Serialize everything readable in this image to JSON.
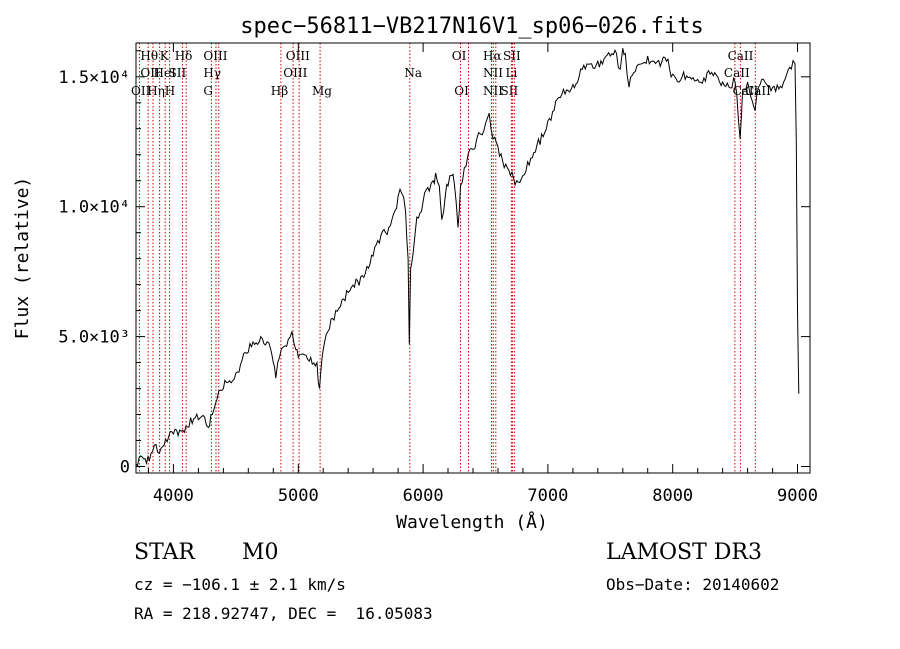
{
  "chart_data": {
    "type": "line",
    "title": "spec−56811−VB217N16V1_sp06−026.fits",
    "xlabel": "Wavelength (Å)",
    "ylabel": "Flux (relative)",
    "xlim": [
      3700,
      9100
    ],
    "ylim": [
      -250,
      16300
    ],
    "xticks": [
      {
        "value": 4000,
        "label": "4000"
      },
      {
        "value": 5000,
        "label": "5000"
      },
      {
        "value": 6000,
        "label": "6000"
      },
      {
        "value": 7000,
        "label": "7000"
      },
      {
        "value": 8000,
        "label": "8000"
      },
      {
        "value": 9000,
        "label": "9000"
      }
    ],
    "yticks": [
      {
        "value": 0,
        "label": "0"
      },
      {
        "value": 5000,
        "label": "5.0×10³"
      },
      {
        "value": 10000,
        "label": "1.0×10⁴"
      },
      {
        "value": 15000,
        "label": "1.5×10⁴"
      }
    ],
    "series": [
      {
        "name": "flux",
        "points": [
          [
            3700,
            100
          ],
          [
            3760,
            300
          ],
          [
            3820,
            500
          ],
          [
            3900,
            700
          ],
          [
            3950,
            950
          ],
          [
            4000,
            1250
          ],
          [
            4050,
            1400
          ],
          [
            4100,
            1550
          ],
          [
            4150,
            1650
          ],
          [
            4200,
            1800
          ],
          [
            4250,
            1900
          ],
          [
            4280,
            1500
          ],
          [
            4300,
            2000
          ],
          [
            4350,
            2600
          ],
          [
            4400,
            3000
          ],
          [
            4450,
            3300
          ],
          [
            4500,
            3600
          ],
          [
            4550,
            4100
          ],
          [
            4600,
            4400
          ],
          [
            4650,
            4700
          ],
          [
            4700,
            5000
          ],
          [
            4750,
            4800
          ],
          [
            4780,
            4500
          ],
          [
            4800,
            4000
          ],
          [
            4820,
            3400
          ],
          [
            4850,
            4200
          ],
          [
            4880,
            4600
          ],
          [
            4920,
            4900
          ],
          [
            4950,
            5200
          ],
          [
            4980,
            4500
          ],
          [
            5000,
            4200
          ],
          [
            5050,
            4300
          ],
          [
            5100,
            4200
          ],
          [
            5150,
            4000
          ],
          [
            5170,
            3000
          ],
          [
            5180,
            3600
          ],
          [
            5200,
            4500
          ],
          [
            5250,
            5300
          ],
          [
            5300,
            6000
          ],
          [
            5350,
            6400
          ],
          [
            5400,
            6700
          ],
          [
            5450,
            6900
          ],
          [
            5500,
            7300
          ],
          [
            5550,
            7700
          ],
          [
            5600,
            8100
          ],
          [
            5650,
            8600
          ],
          [
            5700,
            9000
          ],
          [
            5750,
            9500
          ],
          [
            5800,
            10400
          ],
          [
            5830,
            10500
          ],
          [
            5860,
            9800
          ],
          [
            5880,
            8000
          ],
          [
            5890,
            4700
          ],
          [
            5900,
            7600
          ],
          [
            5920,
            8200
          ],
          [
            5950,
            9600
          ],
          [
            6000,
            10200
          ],
          [
            6050,
            10600
          ],
          [
            6080,
            11000
          ],
          [
            6100,
            11300
          ],
          [
            6130,
            10800
          ],
          [
            6150,
            9500
          ],
          [
            6180,
            10500
          ],
          [
            6200,
            10800
          ],
          [
            6230,
            11200
          ],
          [
            6250,
            10900
          ],
          [
            6280,
            9200
          ],
          [
            6300,
            10800
          ],
          [
            6330,
            11500
          ],
          [
            6360,
            12000
          ],
          [
            6400,
            12200
          ],
          [
            6430,
            12600
          ],
          [
            6460,
            12800
          ],
          [
            6500,
            13200
          ],
          [
            6530,
            13600
          ],
          [
            6560,
            12600
          ],
          [
            6600,
            12300
          ],
          [
            6650,
            11500
          ],
          [
            6700,
            11200
          ],
          [
            6750,
            11000
          ],
          [
            6800,
            11200
          ],
          [
            6850,
            11600
          ],
          [
            6900,
            12100
          ],
          [
            6950,
            12800
          ],
          [
            7000,
            13300
          ],
          [
            7050,
            13700
          ],
          [
            7100,
            14200
          ],
          [
            7150,
            14500
          ],
          [
            7200,
            14700
          ],
          [
            7250,
            15000
          ],
          [
            7300,
            15300
          ],
          [
            7350,
            15500
          ],
          [
            7400,
            15600
          ],
          [
            7450,
            15700
          ],
          [
            7500,
            15800
          ],
          [
            7550,
            15900
          ],
          [
            7580,
            15300
          ],
          [
            7600,
            16100
          ],
          [
            7620,
            15900
          ],
          [
            7650,
            14600
          ],
          [
            7700,
            15200
          ],
          [
            7750,
            15500
          ],
          [
            7800,
            15800
          ],
          [
            7850,
            15600
          ],
          [
            7900,
            15400
          ],
          [
            7950,
            15600
          ],
          [
            8000,
            15100
          ],
          [
            8100,
            14900
          ],
          [
            8200,
            14900
          ],
          [
            8300,
            15100
          ],
          [
            8400,
            14800
          ],
          [
            8500,
            14800
          ],
          [
            8540,
            12600
          ],
          [
            8560,
            14500
          ],
          [
            8600,
            14800
          ],
          [
            8660,
            13700
          ],
          [
            8700,
            14700
          ],
          [
            8800,
            14600
          ],
          [
            8900,
            14900
          ],
          [
            8950,
            15300
          ],
          [
            8980,
            15500
          ],
          [
            8990,
            12500
          ],
          [
            9000,
            6000
          ],
          [
            9010,
            2800
          ]
        ]
      }
    ],
    "lines": [
      {
        "name": "Hθ",
        "wavelength": 3798
      },
      {
        "name": "OII",
        "wavelength": 3727
      },
      {
        "name": "Hη",
        "wavelength": 3836
      },
      {
        "name": "HeI",
        "wavelength": 3889
      },
      {
        "name": "K",
        "wavelength": 3934
      },
      {
        "name": "H",
        "wavelength": 3969
      },
      {
        "name": "SII",
        "wavelength": 4072
      },
      {
        "name": "Hδ",
        "wavelength": 4102
      },
      {
        "name": "G",
        "wavelength": 4304
      },
      {
        "name": "Hγ",
        "wavelength": 4341
      },
      {
        "name": "OIII",
        "wavelength": 4363
      },
      {
        "name": "Hβ",
        "wavelength": 4861
      },
      {
        "name": "OIII",
        "wavelength": 4959
      },
      {
        "name": "OIII",
        "wavelength": 5007
      },
      {
        "name": "Mg",
        "wavelength": 5175
      },
      {
        "name": "Na",
        "wavelength": 5894
      },
      {
        "name": "OI",
        "wavelength": 6300
      },
      {
        "name": "OI",
        "wavelength": 6364
      },
      {
        "name": "NII",
        "wavelength": 6548
      },
      {
        "name": "Hα",
        "wavelength": 6563
      },
      {
        "name": "NII",
        "wavelength": 6583
      },
      {
        "name": "Li",
        "wavelength": 6708
      },
      {
        "name": "SII",
        "wavelength": 6716
      },
      {
        "name": "SII",
        "wavelength": 6731
      },
      {
        "name": "CaII",
        "wavelength": 8498
      },
      {
        "name": "CaII",
        "wavelength": 8542
      },
      {
        "name": "CaII",
        "wavelength": 8662
      }
    ],
    "line_labels": [
      {
        "text": "Hθ",
        "wavelength": 3735,
        "row": 0
      },
      {
        "text": "K",
        "wavelength": 3890,
        "row": 0
      },
      {
        "text": "Hδ",
        "wavelength": 4010,
        "row": 0
      },
      {
        "text": "OIII",
        "wavelength": 4240,
        "row": 0
      },
      {
        "text": "OIII",
        "wavelength": 4900,
        "row": 0
      },
      {
        "text": "OI",
        "wavelength": 6230,
        "row": 0
      },
      {
        "text": "Hα",
        "wavelength": 6480,
        "row": 0
      },
      {
        "text": "SII",
        "wavelength": 6640,
        "row": 0
      },
      {
        "text": "CaII",
        "wavelength": 8440,
        "row": 0
      },
      {
        "text": "OII",
        "wavelength": 3735,
        "row": 1
      },
      {
        "text": "HeI",
        "wavelength": 3840,
        "row": 1
      },
      {
        "text": "SII",
        "wavelength": 3960,
        "row": 1
      },
      {
        "text": "Hγ",
        "wavelength": 4240,
        "row": 1
      },
      {
        "text": "OIII",
        "wavelength": 4880,
        "row": 1
      },
      {
        "text": "Na",
        "wavelength": 5850,
        "row": 1
      },
      {
        "text": "NII",
        "wavelength": 6480,
        "row": 1
      },
      {
        "text": "Li",
        "wavelength": 6660,
        "row": 1
      },
      {
        "text": "CaII",
        "wavelength": 8410,
        "row": 1
      },
      {
        "text": "OII",
        "wavelength": 3660,
        "row": 2
      },
      {
        "text": "Hη",
        "wavelength": 3790,
        "row": 2
      },
      {
        "text": "H",
        "wavelength": 3930,
        "row": 2
      },
      {
        "text": "G",
        "wavelength": 4240,
        "row": 2
      },
      {
        "text": "Hβ",
        "wavelength": 4780,
        "row": 2
      },
      {
        "text": "Mg",
        "wavelength": 5110,
        "row": 2
      },
      {
        "text": "OI",
        "wavelength": 6250,
        "row": 2
      },
      {
        "text": "NII",
        "wavelength": 6480,
        "row": 2
      },
      {
        "text": "SII",
        "wavelength": 6620,
        "row": 2
      },
      {
        "text": "CaII",
        "wavelength": 8480,
        "row": 2
      },
      {
        "text": "CaII",
        "wavelength": 8580,
        "row": 2
      }
    ],
    "line_color": "#cc0000"
  },
  "info": {
    "class": "STAR",
    "subclass": "M0",
    "survey": "LAMOST DR3",
    "cz": "cz = −106.1 ± 2.1 km/s",
    "obs_date": "Obs−Date: 20140602",
    "coords": "RA = 218.92747, DEC =  16.05083"
  }
}
